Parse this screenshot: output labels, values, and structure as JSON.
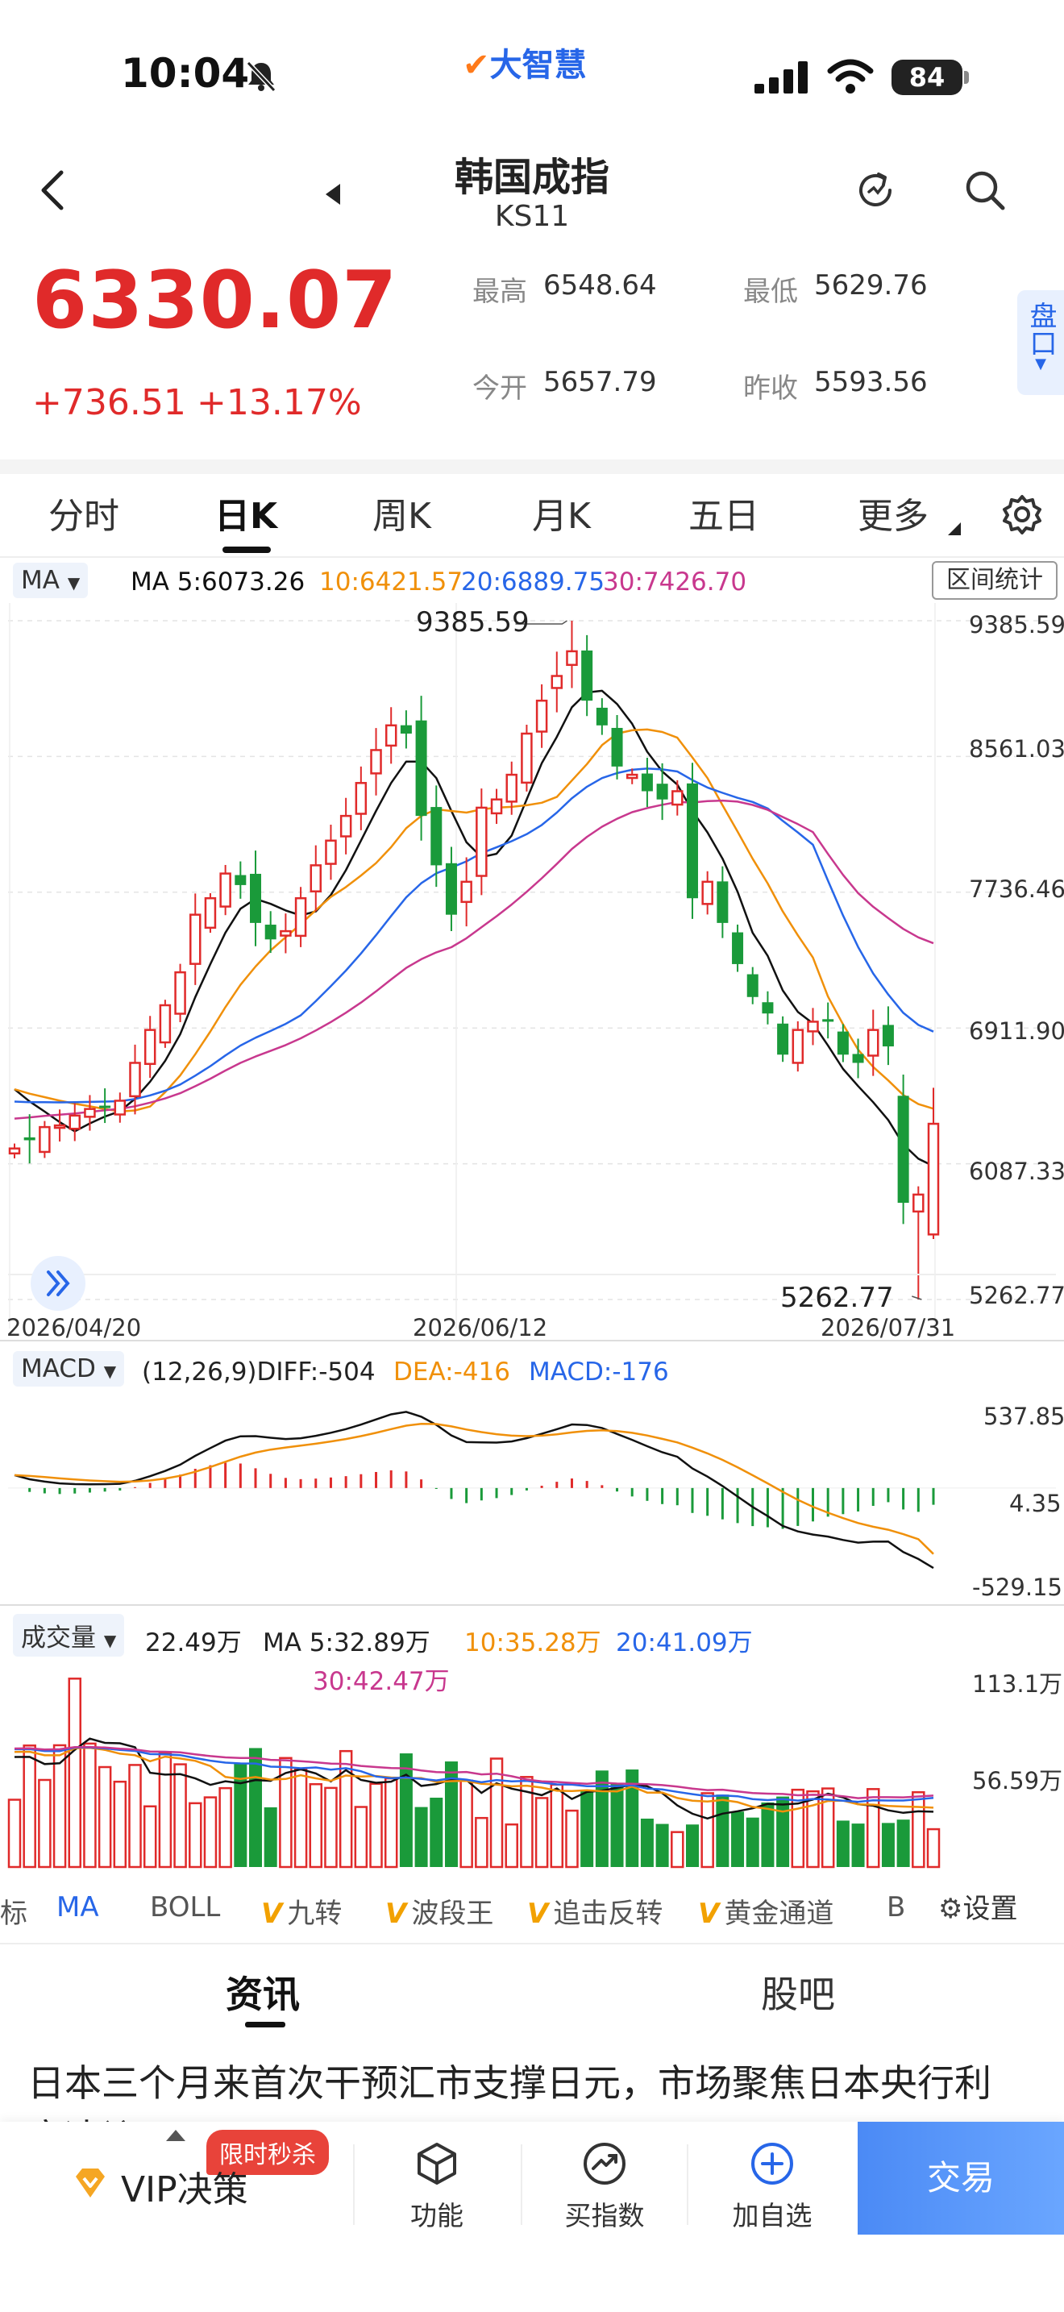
{
  "status_bar": {
    "time": "10:04",
    "battery": "84",
    "brand": "大智慧"
  },
  "header": {
    "name": "韩国成指",
    "code": "KS11"
  },
  "quote": {
    "price": "6330.07",
    "change": "+736.51",
    "change_pct": "+13.17%",
    "high_label": "最高",
    "high": "6548.64",
    "low_label": "最低",
    "low": "5629.76",
    "open_label": "今开",
    "open": "5657.79",
    "prev_close_label": "昨收",
    "prev_close": "5593.56",
    "side_tab": "盘口"
  },
  "period_tabs": [
    "分时",
    "日K",
    "周K",
    "月K",
    "五日",
    "更多"
  ],
  "active_tab": "日K",
  "main_chart": {
    "indicator": "MA",
    "ma5": "MA 5:6073.26",
    "ma10": "10:6421.57",
    "ma20": "20:6889.75",
    "ma30": "30:7426.70",
    "range_button": "区间统计",
    "y_ticks": [
      "9385.59",
      "8561.03",
      "7736.46",
      "6911.90",
      "6087.33",
      "5262.77"
    ],
    "high_mark": "9385.59",
    "low_mark": "5262.77",
    "dates": [
      "2026/04/20",
      "2026/06/12",
      "2026/07/31"
    ]
  },
  "macd": {
    "indicator": "MACD",
    "params": "(12,26,9)",
    "diff": "DIFF:-504",
    "dea": "DEA:-416",
    "macd": "MACD:-176",
    "y_ticks": [
      "537.85",
      "4.35",
      "-529.15"
    ]
  },
  "volume": {
    "indicator": "成交量",
    "value": "22.49万",
    "ma5": "MA 5:32.89万",
    "ma10": "10:35.28万",
    "ma20": "20:41.09万",
    "ma30": "30:42.47万",
    "y_ticks": [
      "113.1万",
      "56.59万"
    ]
  },
  "indicators_bar": {
    "items": [
      "标",
      "MA",
      "BOLL",
      "九转",
      "波段王",
      "追击反转",
      "黄金通道",
      "B"
    ],
    "settings": "设置"
  },
  "content_tabs": {
    "news": "资讯",
    "forum": "股吧"
  },
  "headline": "日本三个月来首次干预汇市支撑日元，市场聚焦日本央行利",
  "headline_cont": "率决议",
  "bottom_bar": {
    "vip": "VIP决策",
    "promo": "限时秒杀",
    "function": "功能",
    "buy_index": "买指数",
    "add_watch": "加自选",
    "trade": "交易"
  },
  "colors": {
    "up": "#e02a2a",
    "down": "#1a9a3a",
    "ma5": "#111111",
    "ma10": "#f0900a",
    "ma20": "#2766e8",
    "ma30": "#c8388e",
    "accent": "#2766e8"
  },
  "chart_data": {
    "type": "candlestick",
    "title": "韩国成指 日K",
    "x_range": [
      "2026/04/20",
      "2026/07/31"
    ],
    "ylim": [
      5262.77,
      9385.59
    ],
    "period_high": 9385.59,
    "period_low": 5262.77,
    "candles_close_approx": [
      6180,
      6230,
      6310,
      6320,
      6380,
      6420,
      6440,
      6470,
      6700,
      6900,
      7050,
      7250,
      7600,
      7700,
      7850,
      7780,
      7550,
      7450,
      7500,
      7700,
      7900,
      8050,
      8200,
      8400,
      8600,
      8750,
      8700,
      8200,
      7900,
      7600,
      7800,
      8250,
      8300,
      8450,
      8700,
      8900,
      9050,
      9200,
      8900,
      8750,
      8500,
      8450,
      8350,
      8300,
      8350,
      7700,
      7800,
      7550,
      7300,
      7100,
      7000,
      6750,
      6900,
      6950,
      6950,
      6750,
      6700,
      6900,
      6800,
      5850,
      5900,
      6330
    ],
    "ma_latest": {
      "MA5": 6073.26,
      "MA10": 6421.57,
      "MA20": 6889.75,
      "MA30": 7426.7
    },
    "macd": {
      "DIFF": -504,
      "DEA": -416,
      "MACD": -176,
      "ylim": [
        -529.15,
        537.85
      ]
    },
    "volume": {
      "latest": "22.49万",
      "MA5": "32.89万",
      "MA10": "35.28万",
      "MA20": "41.09万",
      "MA30": "42.47万",
      "ylim_max": "113.1万"
    }
  }
}
